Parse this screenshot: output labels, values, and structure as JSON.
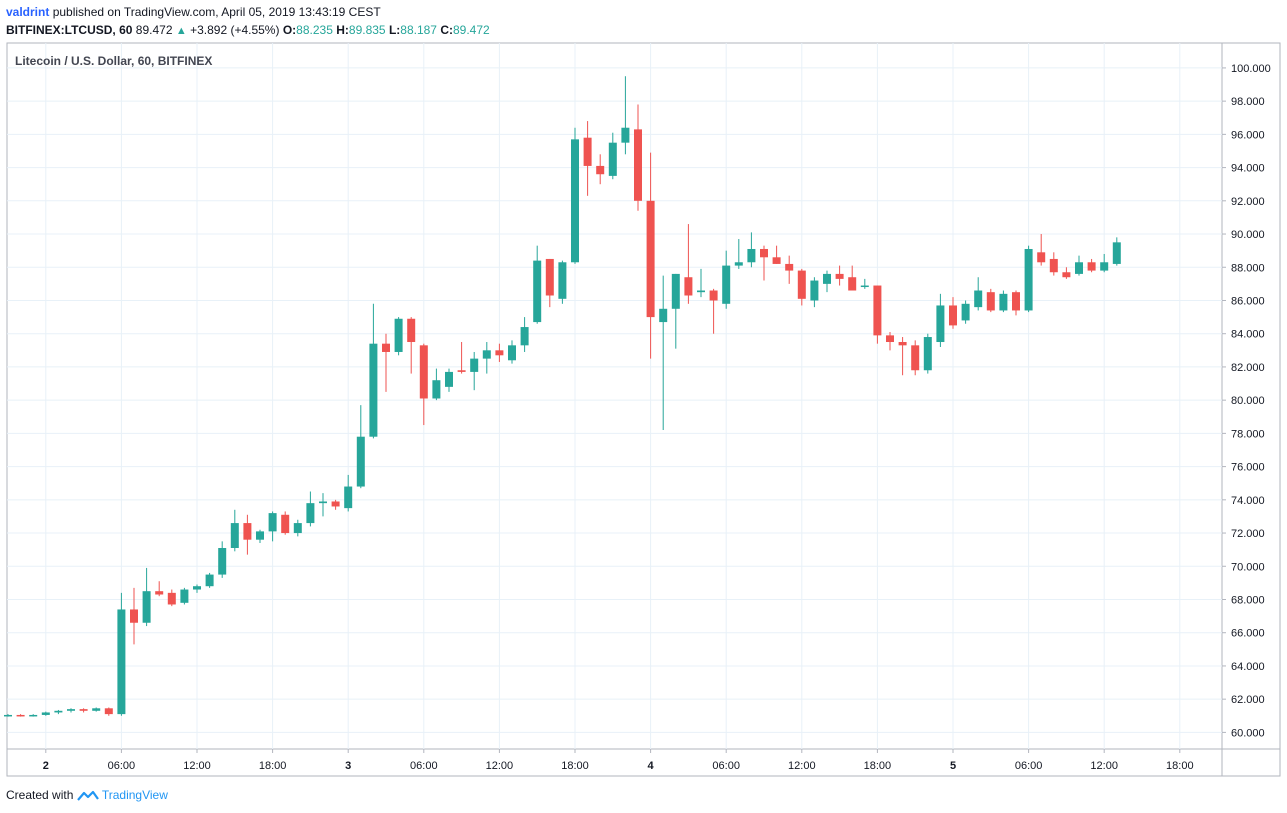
{
  "header": {
    "user": "valdrint",
    "published_text": "published on TradingView.com, April 05, 2019 13:43:19 CEST",
    "symbol": "BITFINEX:LTCUSD, 60",
    "last": "89.472",
    "change": "+3.892 (+4.55%)",
    "o_label": "O:",
    "o_val": "88.235",
    "h_label": "H:",
    "h_val": "89.835",
    "l_label": "L:",
    "l_val": "88.187",
    "c_label": "C:",
    "c_val": "89.472"
  },
  "footer": {
    "created_with": "Created with",
    "brand": "TradingView"
  },
  "colors": {
    "up": "#26a69a",
    "down": "#ef5350",
    "grid": "#e8f1f8",
    "axis": "#b2b5be",
    "text": "#131722"
  },
  "chart_data": {
    "type": "candlestick",
    "title": "Litecoin / U.S. Dollar, 60, BITFINEX",
    "ylim": [
      59,
      101.5
    ],
    "y_ticks": [
      "60.000",
      "62.000",
      "64.000",
      "66.000",
      "68.000",
      "70.000",
      "72.000",
      "74.000",
      "76.000",
      "78.000",
      "80.000",
      "82.000",
      "84.000",
      "86.000",
      "88.000",
      "90.000",
      "92.000",
      "94.000",
      "96.000",
      "98.000",
      "100.000"
    ],
    "x_ticks": [
      {
        "i": 3,
        "label": "2",
        "bold": true
      },
      {
        "i": 9,
        "label": "06:00"
      },
      {
        "i": 15,
        "label": "12:00"
      },
      {
        "i": 21,
        "label": "18:00"
      },
      {
        "i": 27,
        "label": "3",
        "bold": true
      },
      {
        "i": 33,
        "label": "06:00"
      },
      {
        "i": 39,
        "label": "12:00"
      },
      {
        "i": 45,
        "label": "18:00"
      },
      {
        "i": 51,
        "label": "4",
        "bold": true
      },
      {
        "i": 57,
        "label": "06:00"
      },
      {
        "i": 63,
        "label": "12:00"
      },
      {
        "i": 69,
        "label": "18:00"
      },
      {
        "i": 75,
        "label": "5",
        "bold": true
      },
      {
        "i": 81,
        "label": "06:00"
      },
      {
        "i": 87,
        "label": "12:00"
      },
      {
        "i": 93,
        "label": "18:00"
      }
    ],
    "candles": [
      [
        61.0,
        61.1,
        60.95,
        61.05
      ],
      [
        61.05,
        61.1,
        60.95,
        61.0
      ],
      [
        61.0,
        61.1,
        60.95,
        61.05
      ],
      [
        61.05,
        61.25,
        61.0,
        61.2
      ],
      [
        61.2,
        61.35,
        61.1,
        61.3
      ],
      [
        61.3,
        61.45,
        61.2,
        61.4
      ],
      [
        61.4,
        61.45,
        61.2,
        61.3
      ],
      [
        61.3,
        61.5,
        61.25,
        61.45
      ],
      [
        61.45,
        61.5,
        61.0,
        61.1
      ],
      [
        61.1,
        68.4,
        61.0,
        67.4
      ],
      [
        67.4,
        68.7,
        65.3,
        66.6
      ],
      [
        66.6,
        69.9,
        66.4,
        68.5
      ],
      [
        68.5,
        69.1,
        68.2,
        68.3
      ],
      [
        68.4,
        68.6,
        67.6,
        67.7
      ],
      [
        67.8,
        68.7,
        67.7,
        68.6
      ],
      [
        68.6,
        68.9,
        68.4,
        68.8
      ],
      [
        68.8,
        69.6,
        68.7,
        69.5
      ],
      [
        69.5,
        71.5,
        69.3,
        71.1
      ],
      [
        71.1,
        73.4,
        70.9,
        72.6
      ],
      [
        72.6,
        73.1,
        70.7,
        71.6
      ],
      [
        71.6,
        72.2,
        71.4,
        72.1
      ],
      [
        72.1,
        73.3,
        71.5,
        73.2
      ],
      [
        73.1,
        73.3,
        71.9,
        72.0
      ],
      [
        72.0,
        72.8,
        71.8,
        72.6
      ],
      [
        72.6,
        74.5,
        72.4,
        73.8
      ],
      [
        73.8,
        74.4,
        73.0,
        73.9
      ],
      [
        73.9,
        74.0,
        73.4,
        73.6
      ],
      [
        73.5,
        75.5,
        73.3,
        74.8
      ],
      [
        74.8,
        79.7,
        74.7,
        77.8
      ],
      [
        77.8,
        85.8,
        77.7,
        83.4
      ],
      [
        83.4,
        84.0,
        80.5,
        82.9
      ],
      [
        82.9,
        85.0,
        82.7,
        84.9
      ],
      [
        84.9,
        85.0,
        81.6,
        83.5
      ],
      [
        83.3,
        83.4,
        78.5,
        80.1
      ],
      [
        80.1,
        81.9,
        80.0,
        81.2
      ],
      [
        80.8,
        81.9,
        80.5,
        81.7
      ],
      [
        81.8,
        83.5,
        81.6,
        81.7
      ],
      [
        81.7,
        82.9,
        80.6,
        82.5
      ],
      [
        82.5,
        83.5,
        81.6,
        83.0
      ],
      [
        83.0,
        83.4,
        82.3,
        82.7
      ],
      [
        82.4,
        83.6,
        82.2,
        83.3
      ],
      [
        83.3,
        85.0,
        82.9,
        84.4
      ],
      [
        84.7,
        89.3,
        84.6,
        88.4
      ],
      [
        88.5,
        88.5,
        85.6,
        86.3
      ],
      [
        86.1,
        88.4,
        85.8,
        88.3
      ],
      [
        88.3,
        96.4,
        88.2,
        95.7
      ],
      [
        95.8,
        96.8,
        92.3,
        94.1
      ],
      [
        94.1,
        94.8,
        93.0,
        93.6
      ],
      [
        93.5,
        96.1,
        93.3,
        95.5
      ],
      [
        95.5,
        99.5,
        94.8,
        96.4
      ],
      [
        96.3,
        97.8,
        91.4,
        92.0
      ],
      [
        92.0,
        94.9,
        82.5,
        85.0
      ],
      [
        84.7,
        87.5,
        78.2,
        85.5
      ],
      [
        85.5,
        87.6,
        83.1,
        87.6
      ],
      [
        87.4,
        90.6,
        85.8,
        86.3
      ],
      [
        86.5,
        87.9,
        86.2,
        86.6
      ],
      [
        86.6,
        86.7,
        84.0,
        86.0
      ],
      [
        85.8,
        89.0,
        85.5,
        88.1
      ],
      [
        88.1,
        89.7,
        87.9,
        88.3
      ],
      [
        88.3,
        90.1,
        88.0,
        89.1
      ],
      [
        89.1,
        89.3,
        87.2,
        88.6
      ],
      [
        88.6,
        89.3,
        88.2,
        88.2
      ],
      [
        88.2,
        88.7,
        87.0,
        87.8
      ],
      [
        87.8,
        87.9,
        85.7,
        86.1
      ],
      [
        86.0,
        87.4,
        85.6,
        87.2
      ],
      [
        87.0,
        87.8,
        86.5,
        87.6
      ],
      [
        87.6,
        88.1,
        86.9,
        87.3
      ],
      [
        87.4,
        88.1,
        86.8,
        86.6
      ],
      [
        86.9,
        87.3,
        86.7,
        86.9
      ],
      [
        86.9,
        86.9,
        83.4,
        83.9
      ],
      [
        83.9,
        84.1,
        83.0,
        83.5
      ],
      [
        83.5,
        83.8,
        81.5,
        83.3
      ],
      [
        83.3,
        83.6,
        81.5,
        81.8
      ],
      [
        81.8,
        84.0,
        81.6,
        83.8
      ],
      [
        83.5,
        86.4,
        83.2,
        85.7
      ],
      [
        85.7,
        86.2,
        84.3,
        84.5
      ],
      [
        84.8,
        86.0,
        84.6,
        85.8
      ],
      [
        85.6,
        87.4,
        85.4,
        86.6
      ],
      [
        86.5,
        86.7,
        85.3,
        85.4
      ],
      [
        85.4,
        86.6,
        85.3,
        86.4
      ],
      [
        86.5,
        86.6,
        85.1,
        85.4
      ],
      [
        85.4,
        89.3,
        85.3,
        89.1
      ],
      [
        88.9,
        90.0,
        88.1,
        88.3
      ],
      [
        88.5,
        88.9,
        87.5,
        87.7
      ],
      [
        87.7,
        88.0,
        87.3,
        87.4
      ],
      [
        87.6,
        88.7,
        87.5,
        88.3
      ],
      [
        88.3,
        88.5,
        87.7,
        87.8
      ],
      [
        87.8,
        88.8,
        87.7,
        88.3
      ],
      [
        88.2,
        89.8,
        88.1,
        89.5
      ]
    ]
  }
}
